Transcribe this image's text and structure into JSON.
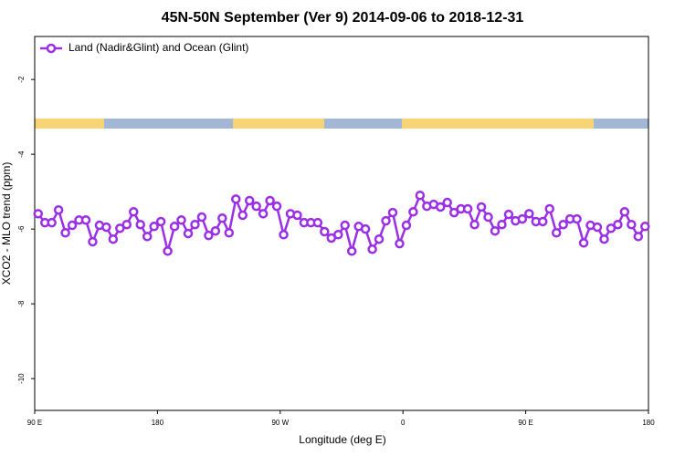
{
  "chart_data": {
    "type": "line",
    "title": "45N-50N September (Ver 9)   2014-09-06 to 2018-12-31",
    "x_label": "Longitude (deg E)",
    "y_label": "XCO2 - MLO trend (ppm)",
    "xlim": [
      90,
      540
    ],
    "xticks": [
      {
        "value": 90,
        "label": "90 E"
      },
      180,
      {
        "value": 270,
        "label": "90 W"
      },
      {
        "value": 360,
        "label": "0"
      },
      {
        "value": 450,
        "label": "90 E"
      },
      {
        "value": 540,
        "label": "180"
      }
    ],
    "ylim": [
      -10.85,
      -0.85
    ],
    "yticks": [
      -10,
      -8,
      -6,
      -4,
      -2
    ],
    "legend": "upper left",
    "series": [
      {
        "name": "Land (Nadir&Glint) and Ocean (Glint)",
        "color": "#9b2fe6",
        "x": [
          92.5,
          97.5,
          102.5,
          107.5,
          112.5,
          117.5,
          122.5,
          127.5,
          132.5,
          137.5,
          142.5,
          147.5,
          152.5,
          157.5,
          162.5,
          167.5,
          172.5,
          177.5,
          182.5,
          187.5,
          192.5,
          197.5,
          202.5,
          207.5,
          212.5,
          217.5,
          222.5,
          227.5,
          232.5,
          237.5,
          242.5,
          247.5,
          252.5,
          257.5,
          262.5,
          267.5,
          272.5,
          277.5,
          282.5,
          287.5,
          292.5,
          297.5,
          302.5,
          307.5,
          312.5,
          317.5,
          322.5,
          327.5,
          332.5,
          337.5,
          342.5,
          347.5,
          352.5,
          357.5,
          362.5,
          367.5,
          372.5,
          377.5,
          382.5,
          387.5,
          392.5,
          397.5,
          402.5,
          407.5,
          412.5,
          417.5,
          422.5,
          427.5,
          432.5,
          437.5,
          442.5,
          447.5,
          452.5,
          457.5,
          462.5,
          467.5,
          472.5,
          477.5,
          482.5,
          487.5,
          492.5,
          497.5,
          502.5,
          507.5,
          512.5,
          517.5,
          522.5,
          527.5,
          532.5,
          537.5
        ],
        "values": [
          -5.59,
          -5.83,
          -5.83,
          -5.49,
          -6.1,
          -5.9,
          -5.76,
          -5.76,
          -6.34,
          -5.9,
          -5.95,
          -6.27,
          -5.98,
          -5.88,
          -5.54,
          -5.88,
          -6.2,
          -5.93,
          -5.8,
          -6.59,
          -5.93,
          -5.76,
          -6.12,
          -5.88,
          -5.68,
          -6.17,
          -6.05,
          -5.71,
          -6.1,
          -5.2,
          -5.63,
          -5.24,
          -5.39,
          -5.59,
          -5.24,
          -5.39,
          -6.15,
          -5.59,
          -5.63,
          -5.83,
          -5.83,
          -5.83,
          -6.07,
          -6.24,
          -6.15,
          -5.9,
          -6.59,
          -5.93,
          -6.0,
          -6.54,
          -6.27,
          -5.78,
          -5.56,
          -6.39,
          -5.9,
          -5.54,
          -5.1,
          -5.39,
          -5.34,
          -5.41,
          -5.29,
          -5.56,
          -5.46,
          -5.46,
          -5.88,
          -5.41,
          -5.68,
          -6.05,
          -5.88,
          -5.61,
          -5.78,
          -5.73,
          -5.59,
          -5.8,
          -5.8,
          -5.46,
          -6.1,
          -5.88,
          -5.73,
          -5.73,
          -6.37,
          -5.9,
          -5.95,
          -6.27,
          -5.98,
          -5.88,
          -5.54,
          -5.88,
          -6.2,
          -5.93
        ]
      }
    ]
  }
}
